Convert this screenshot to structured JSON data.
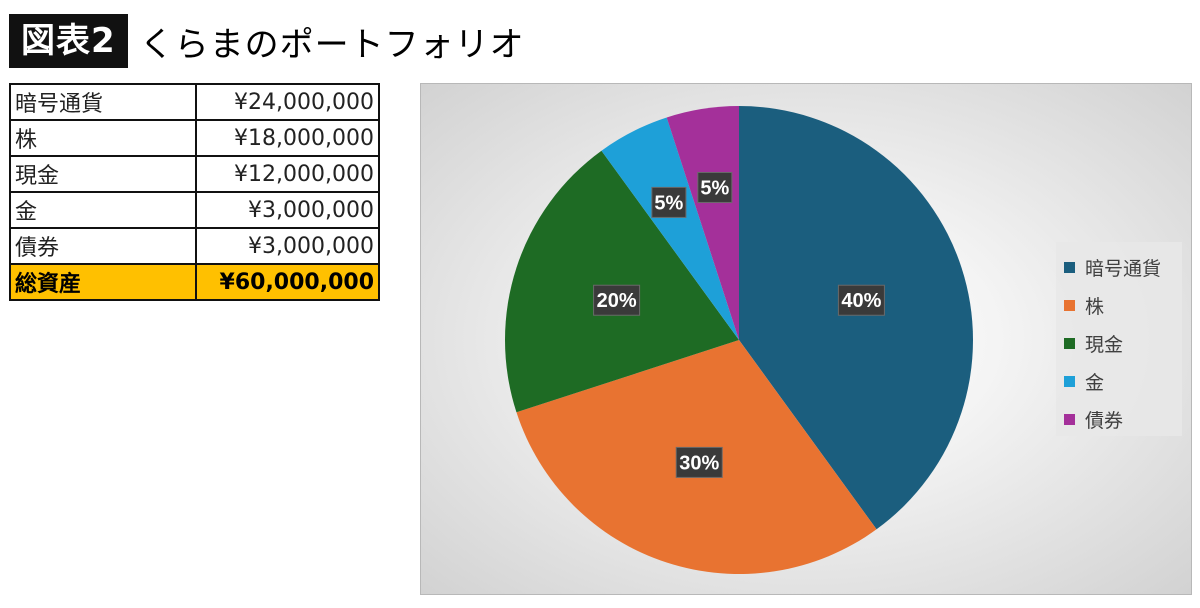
{
  "header": {
    "badge": "図表2",
    "title": "くらまのポートフォリオ"
  },
  "table": {
    "rows": [
      {
        "label": "暗号通貨",
        "value": "¥24,000,000"
      },
      {
        "label": "株",
        "value": "¥18,000,000"
      },
      {
        "label": "現金",
        "value": "¥12,000,000"
      },
      {
        "label": "金",
        "value": "¥3,000,000"
      },
      {
        "label": "債券",
        "value": "¥3,000,000"
      }
    ],
    "total": {
      "label": "総資産",
      "value": "¥60,000,000"
    }
  },
  "chart_data": {
    "type": "pie",
    "title": "",
    "categories": [
      "暗号通貨",
      "株",
      "現金",
      "金",
      "債券"
    ],
    "values": [
      40,
      30,
      20,
      5,
      5
    ],
    "labels": [
      "40%",
      "30%",
      "20%",
      "5%",
      "5%"
    ],
    "colors": [
      "#1b5e7e",
      "#e87331",
      "#1e6b24",
      "#1ea0d8",
      "#a4309a"
    ],
    "legend_position": "right"
  }
}
